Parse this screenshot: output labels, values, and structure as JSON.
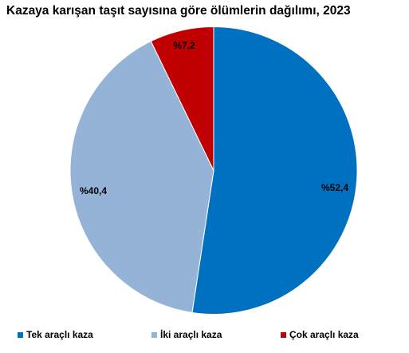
{
  "chart_data": {
    "type": "pie",
    "title": "Kazaya karışan taşıt sayısına göre ölümlerin dağılımı, 2023",
    "start": "12 o'clock",
    "direction": "clockwise",
    "slices": [
      {
        "name": "Tek araçlı kaza",
        "value": 52.4,
        "label": "%52,4",
        "color": "#0070C0"
      },
      {
        "name": "İki araçlı kaza",
        "value": 40.4,
        "label": "%40,4",
        "color": "#95B3D7"
      },
      {
        "name": "Çok araçlı kaza",
        "value": 7.2,
        "label": "%7,2",
        "color": "#C00000"
      }
    ],
    "legend_position": "bottom"
  }
}
